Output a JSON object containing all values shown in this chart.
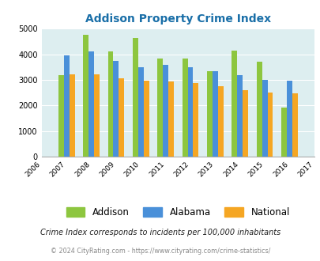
{
  "title": "Addison Property Crime Index",
  "years": [
    2006,
    2007,
    2008,
    2009,
    2010,
    2011,
    2012,
    2013,
    2014,
    2015,
    2016,
    2017
  ],
  "addison": [
    null,
    3200,
    4750,
    4100,
    4650,
    3820,
    3830,
    3350,
    4150,
    3720,
    1930,
    null
  ],
  "alabama": [
    null,
    3970,
    4100,
    3750,
    3500,
    3580,
    3500,
    3340,
    3170,
    3000,
    2980,
    null
  ],
  "national": [
    null,
    3230,
    3230,
    3050,
    2960,
    2930,
    2880,
    2740,
    2600,
    2490,
    2460,
    null
  ],
  "colors": {
    "addison": "#8dc63f",
    "alabama": "#4a90d9",
    "national": "#f5a623"
  },
  "ylim": [
    0,
    5000
  ],
  "yticks": [
    0,
    1000,
    2000,
    3000,
    4000,
    5000
  ],
  "bg_color": "#ddeef0",
  "grid_color": "#ffffff",
  "title_color": "#1a6fa8",
  "legend_labels": [
    "Addison",
    "Alabama",
    "National"
  ],
  "footnote1": "Crime Index corresponds to incidents per 100,000 inhabitants",
  "footnote2": "© 2024 CityRating.com - https://www.cityrating.com/crime-statistics/",
  "bar_width": 0.22
}
